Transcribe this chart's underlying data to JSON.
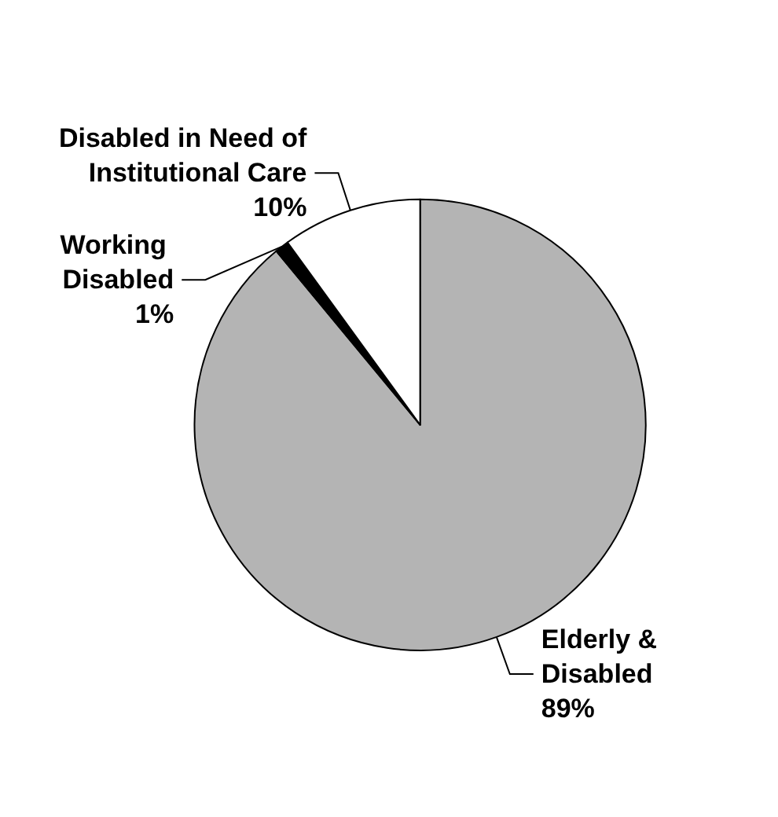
{
  "chart_data": {
    "type": "pie",
    "categories": [
      "Elderly & Disabled",
      "Working Disabled",
      "Disabled in Need of Institutional Care"
    ],
    "values": [
      89,
      1,
      10
    ],
    "colors": [
      "#b4b4b4",
      "#000000",
      "#ffffff"
    ],
    "value_labels": [
      "89%",
      "1%",
      "10%"
    ],
    "legend": false
  }
}
